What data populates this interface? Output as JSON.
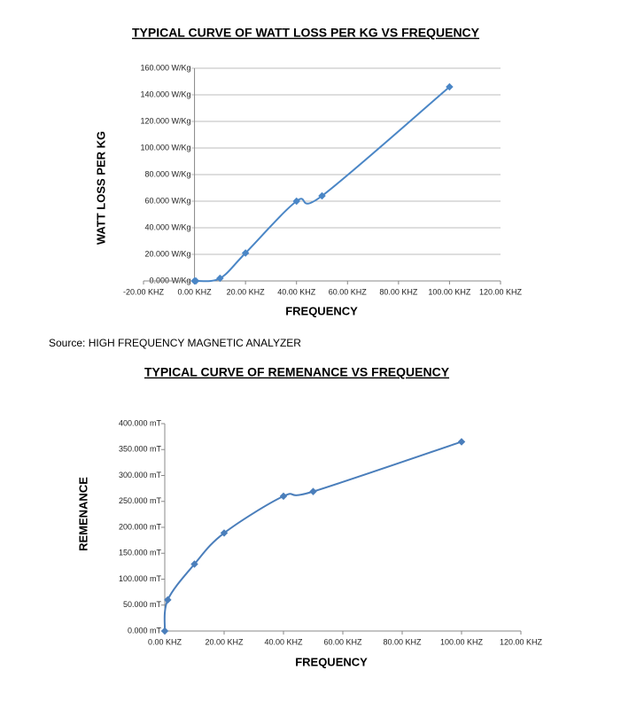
{
  "chart_data": [
    {
      "type": "line",
      "title": "TYPICAL CURVE OF WATT LOSS PER KG VS FREQUENCY",
      "x_label": "FREQUENCY",
      "y_label": "WATT LOSS PER KG",
      "x": [
        0,
        0.5,
        10,
        20,
        40,
        50,
        100
      ],
      "series": [
        {
          "color": "#4a86c6",
          "values": [
            0,
            0,
            2,
            21,
            60,
            64,
            146
          ]
        }
      ],
      "xlim": [
        -20,
        120
      ],
      "xticks": [
        {
          "value": -20,
          "label": "-20.00 KHZ"
        },
        {
          "value": 0,
          "label": "0.00 KHZ"
        },
        {
          "value": 20,
          "label": "20.00 KHZ"
        },
        {
          "value": 40,
          "label": "40.00 KHZ"
        },
        {
          "value": 60,
          "label": "60.00 KHZ"
        },
        {
          "value": 80,
          "label": "80.00 KHZ"
        },
        {
          "value": 100,
          "label": "100.00 KHZ"
        },
        {
          "value": 120,
          "label": "120.00 KHZ"
        }
      ],
      "ylim": [
        0,
        160
      ],
      "yticks": [
        {
          "value": 0,
          "label": "0.000 W/Kg"
        },
        {
          "value": 20,
          "label": "20.000 W/Kg"
        },
        {
          "value": 40,
          "label": "40.000 W/Kg"
        },
        {
          "value": 60,
          "label": "60.000 W/Kg"
        },
        {
          "value": 80,
          "label": "80.000 W/Kg"
        },
        {
          "value": 100,
          "label": "100.000 W/Kg"
        },
        {
          "value": 120,
          "label": "120.000 W/Kg"
        },
        {
          "value": 140,
          "label": "140.000 W/Kg"
        },
        {
          "value": 160,
          "label": "160.000 W/Kg"
        }
      ],
      "grid": true
    },
    {
      "type": "line",
      "title": "TYPICAL CURVE OF REMENANCE VS FREQUENCY",
      "x_label": "FREQUENCY",
      "y_label": "REMENANCE",
      "x": [
        0,
        1,
        10,
        20,
        40,
        50,
        100
      ],
      "series": [
        {
          "color": "#4a7ebb",
          "values": [
            0,
            60,
            129,
            189,
            260,
            269,
            365
          ]
        }
      ],
      "xlim": [
        0,
        120
      ],
      "xticks": [
        {
          "value": 0,
          "label": "0.00 KHZ"
        },
        {
          "value": 20,
          "label": "20.00 KHZ"
        },
        {
          "value": 40,
          "label": "40.00 KHZ"
        },
        {
          "value": 60,
          "label": "60.00 KHZ"
        },
        {
          "value": 80,
          "label": "80.00 KHZ"
        },
        {
          "value": 100,
          "label": "100.00 KHZ"
        },
        {
          "value": 120,
          "label": "120.00 KHZ"
        }
      ],
      "ylim": [
        0,
        400
      ],
      "yticks": [
        {
          "value": 0,
          "label": "0.000 mT"
        },
        {
          "value": 50,
          "label": "50.000 mT"
        },
        {
          "value": 100,
          "label": "100.000 mT"
        },
        {
          "value": 150,
          "label": "150.000 mT"
        },
        {
          "value": 200,
          "label": "200.000 mT"
        },
        {
          "value": 250,
          "label": "250.000 mT"
        },
        {
          "value": 300,
          "label": "300.000 mT"
        },
        {
          "value": 350,
          "label": "350.000 mT"
        },
        {
          "value": 400,
          "label": "400.000 mT"
        }
      ],
      "grid": false
    }
  ],
  "source": "Source: HIGH FREQUENCY MAGNETIC ANALYZER"
}
